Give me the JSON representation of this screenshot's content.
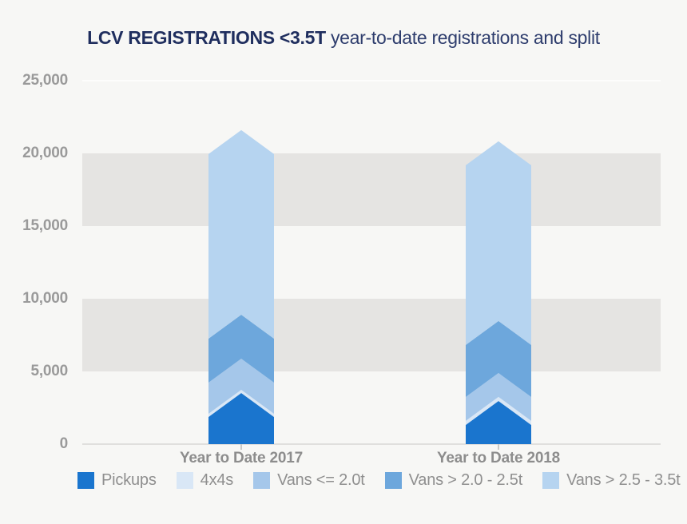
{
  "title": {
    "bold": "LCV REGISTRATIONS <3.5T",
    "regular": " year-to-date registrations and split"
  },
  "colors": {
    "background": "#f7f7f5",
    "band": "#e5e4e2",
    "title_bold": "#1f2e5e",
    "title_regular": "#2e3d6d",
    "y_label": "#9a9a9a",
    "x_label": "#8d8d8d",
    "legend_text": "#8f8f8f",
    "baseline": "#e0dfdd",
    "top_gridline": "#fdfdfc",
    "axis_tick": "#c9c9c7"
  },
  "chart_data": {
    "type": "bar",
    "subtype": "stacked-chevron-columns",
    "title": "LCV REGISTRATIONS <3.5T year-to-date registrations and split",
    "categories": [
      "Year to Date 2017",
      "Year to Date 2018"
    ],
    "series": [
      {
        "name": "Pickups",
        "color": "#1a75ce",
        "values": [
          1870,
          1320
        ]
      },
      {
        "name": "4x4s",
        "color": "#d9e7f6",
        "values": [
          220,
          280
        ]
      },
      {
        "name": "Vans <= 2.0t",
        "color": "#a5c7ea",
        "values": [
          2140,
          1640
        ]
      },
      {
        "name": "Vans > 2.0 - 2.5t",
        "color": "#6da7dc",
        "values": [
          3020,
          3580
        ]
      },
      {
        "name": "Vans > 2.5 - 3.5t",
        "color": "#b6d4f0",
        "values": [
          12700,
          12360
        ]
      }
    ],
    "totals": [
      19950,
      19180
    ],
    "ylim": [
      0,
      25000
    ],
    "y_ticks": [
      {
        "value": 25000,
        "label": "25,000"
      },
      {
        "value": 20000,
        "label": "20,000"
      },
      {
        "value": 15000,
        "label": "15,000"
      },
      {
        "value": 10000,
        "label": "10,000"
      },
      {
        "value": 5000,
        "label": "5,000"
      },
      {
        "value": 0,
        "label": "0"
      }
    ],
    "background_bands": [
      [
        20000,
        15000
      ],
      [
        10000,
        5000
      ]
    ],
    "grid": "alternating-horizontal-bands",
    "legend_position": "bottom"
  }
}
